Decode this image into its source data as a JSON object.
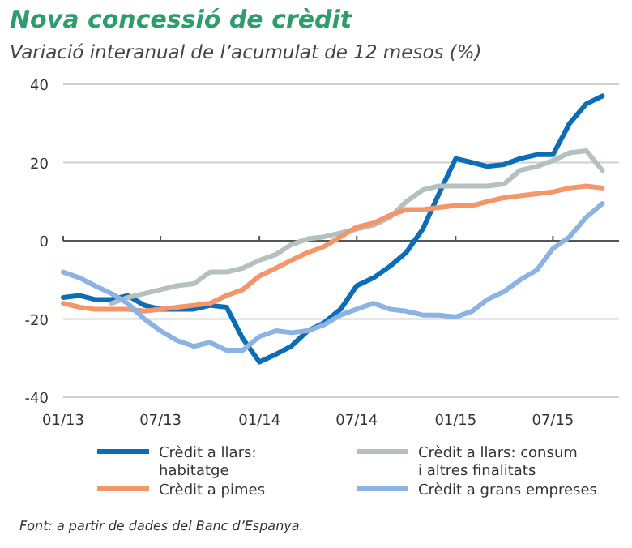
{
  "chart_data": {
    "type": "line",
    "title": "Nova concessió de crèdit",
    "subtitle": "Variació interanual de l’acumulat de 12 mesos (%)",
    "x": [
      "2013-01",
      "2013-02",
      "2013-03",
      "2013-04",
      "2013-05",
      "2013-06",
      "2013-07",
      "2013-08",
      "2013-09",
      "2013-10",
      "2013-11",
      "2013-12",
      "2014-01",
      "2014-02",
      "2014-03",
      "2014-04",
      "2014-05",
      "2014-06",
      "2014-07",
      "2014-08",
      "2014-09",
      "2014-10",
      "2014-11",
      "2014-12",
      "2015-01",
      "2015-02",
      "2015-03",
      "2015-04",
      "2015-05",
      "2015-06",
      "2015-07",
      "2015-08",
      "2015-09",
      "2015-10"
    ],
    "series": [
      {
        "name": "Crèdit a llars: habitatge",
        "color": "#0b6db5",
        "values": [
          -14.5,
          -14,
          -15,
          -15,
          -14,
          -16.5,
          -17.5,
          -17.5,
          -17.5,
          -16.5,
          -17,
          -25,
          -31,
          -29,
          -27,
          -23,
          -21,
          -17.5,
          -11.5,
          -9.5,
          -6.5,
          -3,
          3,
          12,
          21,
          20,
          19,
          19.5,
          21,
          22,
          22,
          30,
          35,
          37
        ]
      },
      {
        "name": "Crèdit a llars: consum i altres finalitats",
        "color": "#b5c0c0",
        "values": [
          null,
          null,
          null,
          -16,
          -14.5,
          -13.5,
          -12.5,
          -11.5,
          -11,
          -8,
          -8,
          -7,
          -5,
          -3.5,
          -1,
          0.5,
          1,
          2,
          3,
          4,
          6,
          10,
          13,
          14,
          14,
          14,
          14,
          14.5,
          18,
          19,
          20.5,
          22.5,
          23,
          18
        ]
      },
      {
        "name": "Crèdit a pimes",
        "color": "#f4956a",
        "values": [
          -16,
          -17,
          -17.5,
          -17.5,
          -17.5,
          -18,
          -17.5,
          -17,
          -16.5,
          -16,
          -14,
          -12.5,
          -9,
          -7,
          -5,
          -3,
          -1.5,
          1,
          3.5,
          4.5,
          6.5,
          8,
          8,
          8.5,
          9,
          9,
          10,
          11,
          11.5,
          12,
          12.5,
          13.5,
          14,
          13.5
        ]
      },
      {
        "name": "Crèdit a grans empreses",
        "color": "#8cb3e2",
        "values": [
          -8,
          -9.5,
          -11.5,
          -13.5,
          -16,
          -20,
          -23,
          -25.5,
          -27,
          -26,
          -28,
          -28,
          -24.5,
          -23,
          -23.5,
          -23,
          -21.5,
          -19,
          -17.5,
          -16,
          -17.5,
          -18,
          -19,
          -19,
          -19.5,
          -18,
          -15,
          -13,
          -10,
          -7.5,
          -2,
          1,
          6,
          9.5
        ]
      }
    ],
    "xlim": [
      "2013-01",
      "2015-11"
    ],
    "xticks": [
      {
        "value": "2013-01",
        "label": "01/13"
      },
      {
        "value": "2013-07",
        "label": "07/13"
      },
      {
        "value": "2014-01",
        "label": "01/14"
      },
      {
        "value": "2014-07",
        "label": "07/14"
      },
      {
        "value": "2015-01",
        "label": "01/15"
      },
      {
        "value": "2015-07",
        "label": "07/15"
      }
    ],
    "ylim": [
      -40,
      40
    ],
    "yticks": [
      -40,
      -20,
      0,
      20,
      40
    ],
    "grid": "y",
    "legend": "bottom",
    "line_style": "solid",
    "marker": "none",
    "annotations": [
      "Font: a partir de dades del Banc d’Espanya."
    ]
  }
}
